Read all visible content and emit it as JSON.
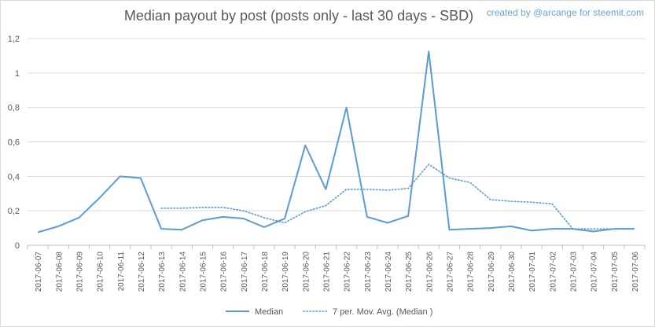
{
  "chart_data": {
    "type": "line",
    "title": "Median payout by post (posts only - last 30 days - SBD)",
    "credit": "created by @arcange for steemit.com",
    "xlabel": "",
    "ylabel": "",
    "ylim": [
      0,
      1.2
    ],
    "y_ticks": [
      "0",
      "0,2",
      "0,4",
      "0,6",
      "0,8",
      "1",
      "1,2"
    ],
    "grid": true,
    "legend_position": "bottom",
    "categories": [
      "2017-06-07",
      "2017-06-08",
      "2017-06-09",
      "2017-06-10",
      "2017-06-11",
      "2017-06-12",
      "2017-06-13",
      "2017-06-14",
      "2017-06-15",
      "2017-06-16",
      "2017-06-17",
      "2017-06-18",
      "2017-06-19",
      "2017-06-20",
      "2017-06-21",
      "2017-06-22",
      "2017-06-23",
      "2017-06-24",
      "2017-06-25",
      "2017-06-26",
      "2017-06-27",
      "2017-06-28",
      "2017-06-29",
      "2017-06-30",
      "2017-07-01",
      "2017-07-02",
      "2017-07-03",
      "2017-07-04",
      "2017-07-05",
      "2017-07-06"
    ],
    "series": [
      {
        "name": "Median",
        "color": "#5b9bd5",
        "style": "solid",
        "values": [
          0.075,
          0.11,
          0.16,
          0.275,
          0.4,
          0.39,
          0.095,
          0.09,
          0.145,
          0.165,
          0.155,
          0.105,
          0.155,
          0.58,
          0.325,
          0.8,
          0.165,
          0.13,
          0.17,
          1.125,
          0.09,
          0.095,
          0.1,
          0.11,
          0.085,
          0.095,
          0.095,
          0.08,
          0.095,
          0.095
        ]
      },
      {
        "name": "7 per. Mov. Avg. (Median )",
        "color": "#5b9bd5",
        "style": "dotted",
        "values": [
          null,
          null,
          null,
          null,
          null,
          null,
          0.215,
          0.215,
          0.22,
          0.22,
          0.2,
          0.16,
          0.13,
          0.195,
          0.23,
          0.325,
          0.325,
          0.32,
          0.33,
          0.47,
          0.39,
          0.365,
          0.265,
          0.255,
          0.25,
          0.24,
          0.095,
          0.095,
          0.095,
          0.095
        ]
      }
    ]
  }
}
